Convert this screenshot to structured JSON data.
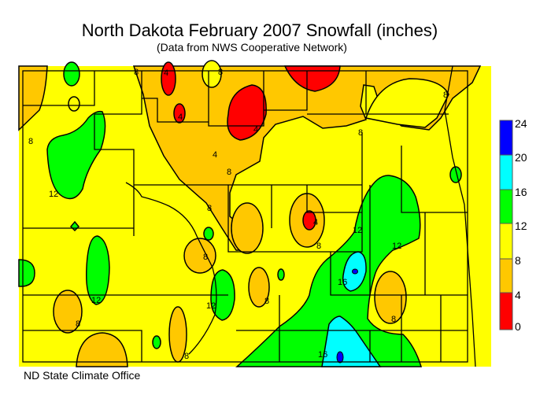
{
  "title": "North Dakota February 2007 Snowfall (inches)",
  "subtitle": "(Data from NWS Cooperative Network)",
  "credit": "ND State Climate Office",
  "legend": {
    "ticks": [
      "24",
      "20",
      "16",
      "12",
      "8",
      "4",
      "0"
    ],
    "bins": [
      {
        "range": "20-24",
        "color": "#0000ff"
      },
      {
        "range": "16-20",
        "color": "#00ffff"
      },
      {
        "range": "12-16",
        "color": "#00ff00"
      },
      {
        "range": "8-12",
        "color": "#ffff00"
      },
      {
        "range": "4-8",
        "color": "#ffc800"
      },
      {
        "range": "0-4",
        "color": "#ff0000"
      }
    ]
  },
  "contour_labels": [
    "8",
    "8",
    "4",
    "8",
    "4",
    "4",
    "8",
    "4",
    "8",
    "12",
    "8",
    "4",
    "8",
    "12",
    "16",
    "12",
    "8",
    "8",
    "12",
    "8",
    "8",
    "8",
    "12",
    "16",
    "8"
  ]
}
